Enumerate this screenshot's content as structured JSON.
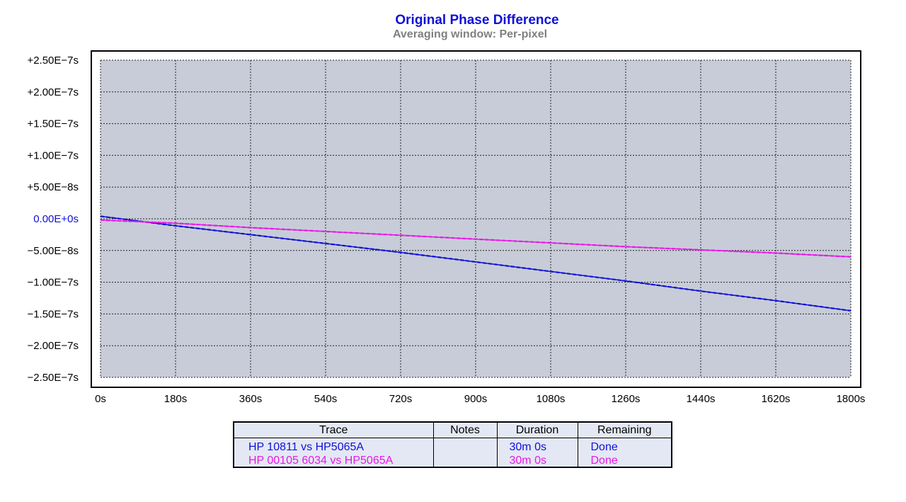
{
  "title": "Original Phase Difference",
  "subtitle": "Averaging window: Per-pixel",
  "chart_data": {
    "type": "line",
    "title": "Original Phase Difference",
    "subtitle": "Averaging window: Per-pixel",
    "xlim": [
      0,
      1800
    ],
    "ylim": [
      -2.5e-07,
      2.5e-07
    ],
    "x_ticks": [
      0,
      180,
      360,
      540,
      720,
      900,
      1080,
      1260,
      1440,
      1620,
      1800
    ],
    "x_tick_labels": [
      "0s",
      "180s",
      "360s",
      "540s",
      "720s",
      "900s",
      "1080s",
      "1260s",
      "1440s",
      "1620s",
      "1800s"
    ],
    "y_ticks": [
      2.5e-07,
      2e-07,
      1.5e-07,
      1e-07,
      5e-08,
      0,
      -5e-08,
      -1e-07,
      -1.5e-07,
      -2e-07,
      -2.5e-07
    ],
    "y_tick_labels": [
      "+2.50E−7s",
      "+2.00E−7s",
      "+1.50E−7s",
      "+1.00E−7s",
      "+5.00E−8s",
      "0.00E+0s",
      "−5.00E−8s",
      "−1.00E−7s",
      "−1.50E−7s",
      "−2.00E−7s",
      "−2.50E−7s"
    ],
    "grid": true,
    "series": [
      {
        "name": "HP 10811 vs HP5065A",
        "color": "#1010d8",
        "x": [
          0,
          180,
          360,
          540,
          720,
          900,
          1080,
          1260,
          1440,
          1620,
          1800
        ],
        "y": [
          4e-09,
          -1.1e-08,
          -2.5e-08,
          -3.9e-08,
          -5.3e-08,
          -6.8e-08,
          -8.3e-08,
          -9.8e-08,
          -1.14e-07,
          -1.29e-07,
          -1.45e-07
        ]
      },
      {
        "name": "HP 00105 6034 vs HP5065A",
        "color": "#e818e8",
        "x": [
          0,
          180,
          360,
          540,
          720,
          900,
          1080,
          1260,
          1440,
          1620,
          1800
        ],
        "y": [
          -2e-09,
          -7e-09,
          -1.4e-08,
          -2e-08,
          -2.6e-08,
          -3.2e-08,
          -3.8e-08,
          -4.4e-08,
          -4.9e-08,
          -5.4e-08,
          -6e-08
        ]
      }
    ]
  },
  "legend": {
    "headers": {
      "trace": "Trace",
      "notes": "Notes",
      "duration": "Duration",
      "remaining": "Remaining"
    },
    "rows": [
      {
        "trace": "HP 10811 vs HP5065A",
        "notes": "",
        "duration": "30m 0s",
        "remaining": "Done",
        "color": "#1010d8"
      },
      {
        "trace": "HP 00105 6034 vs HP5065A",
        "notes": "",
        "duration": "30m 0s",
        "remaining": "Done",
        "color": "#e818e8"
      }
    ]
  },
  "colors": {
    "plot_background": "#c8ccd8",
    "zero_label": "#1010d8"
  }
}
